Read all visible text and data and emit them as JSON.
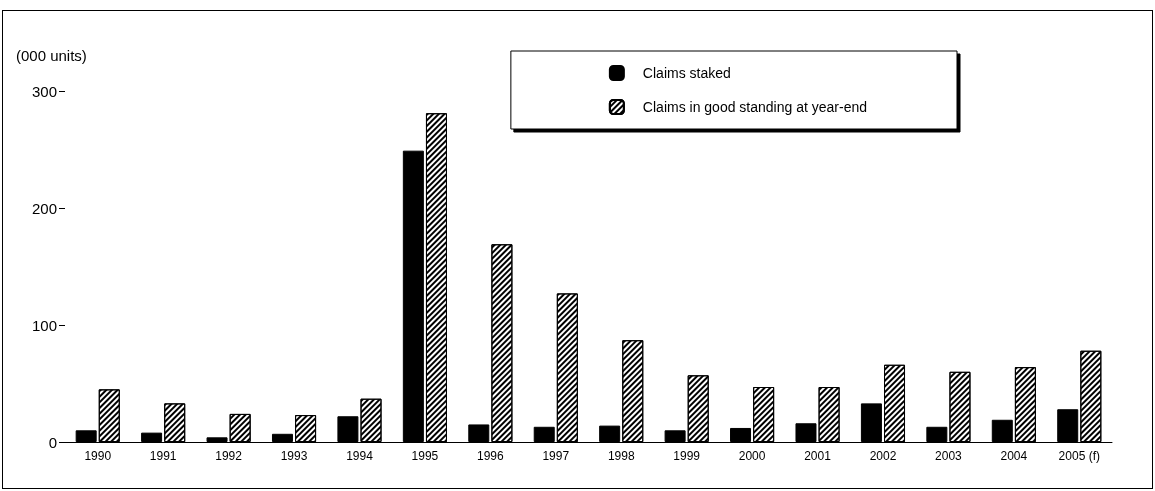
{
  "chart_data": {
    "type": "bar",
    "ylabel": "(000 units)",
    "categories": [
      "1990",
      "1991",
      "1992",
      "1993",
      "1994",
      "1995",
      "1996",
      "1997",
      "1998",
      "1999",
      "2000",
      "2001",
      "2002",
      "2003",
      "2004",
      "2005 (f)"
    ],
    "series": [
      {
        "name": "Claims staked",
        "color": "#000000",
        "values": [
          10,
          8,
          4,
          7,
          22,
          249,
          15,
          13,
          14,
          10,
          12,
          16,
          33,
          13,
          19,
          28
        ]
      },
      {
        "name": "Claims in good standing at year-end",
        "color": "#ffffff",
        "values": [
          45,
          33,
          24,
          23,
          37,
          281,
          169,
          127,
          87,
          57,
          47,
          47,
          66,
          60,
          64,
          78
        ]
      }
    ],
    "ylim": [
      0,
      300
    ],
    "yticks": [
      0,
      100,
      200,
      300
    ],
    "grid": false,
    "legend": "top right"
  }
}
